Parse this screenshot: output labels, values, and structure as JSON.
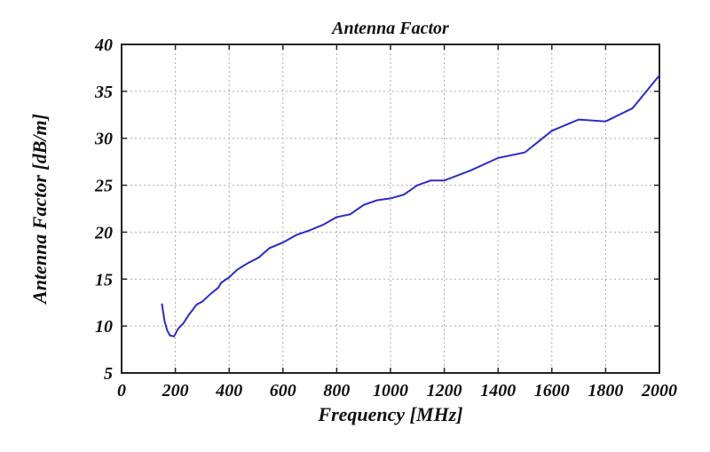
{
  "chart_data": {
    "type": "line",
    "title": "Antenna Factor",
    "xlabel": "Frequency [MHz]",
    "ylabel": "Antenna Factor [dB/m]",
    "xlim": [
      0,
      2000
    ],
    "ylim": [
      5,
      40
    ],
    "xticks": [
      0,
      200,
      400,
      600,
      800,
      1000,
      1200,
      1400,
      1600,
      1800,
      2000
    ],
    "yticks": [
      5,
      10,
      15,
      20,
      25,
      30,
      35,
      40
    ],
    "grid": true,
    "line_color": "#2a2ad0",
    "series": [
      {
        "name": "Antenna Factor",
        "x": [
          150,
          160,
          170,
          180,
          195,
          210,
          230,
          250,
          280,
          300,
          330,
          360,
          370,
          400,
          430,
          470,
          510,
          550,
          600,
          650,
          700,
          750,
          800,
          850,
          900,
          950,
          1000,
          1050,
          1100,
          1150,
          1200,
          1300,
          1400,
          1500,
          1600,
          1700,
          1800,
          1900,
          2000
        ],
        "y": [
          12.4,
          10.5,
          9.5,
          9.0,
          8.9,
          9.7,
          10.3,
          11.2,
          12.3,
          12.6,
          13.4,
          14.1,
          14.6,
          15.2,
          16.0,
          16.7,
          17.3,
          18.3,
          18.9,
          19.7,
          20.2,
          20.8,
          21.6,
          21.9,
          22.9,
          23.4,
          23.6,
          24.0,
          25.0,
          25.5,
          25.5,
          26.6,
          27.9,
          28.5,
          30.8,
          32.0,
          31.8,
          33.2,
          36.7
        ]
      }
    ]
  }
}
